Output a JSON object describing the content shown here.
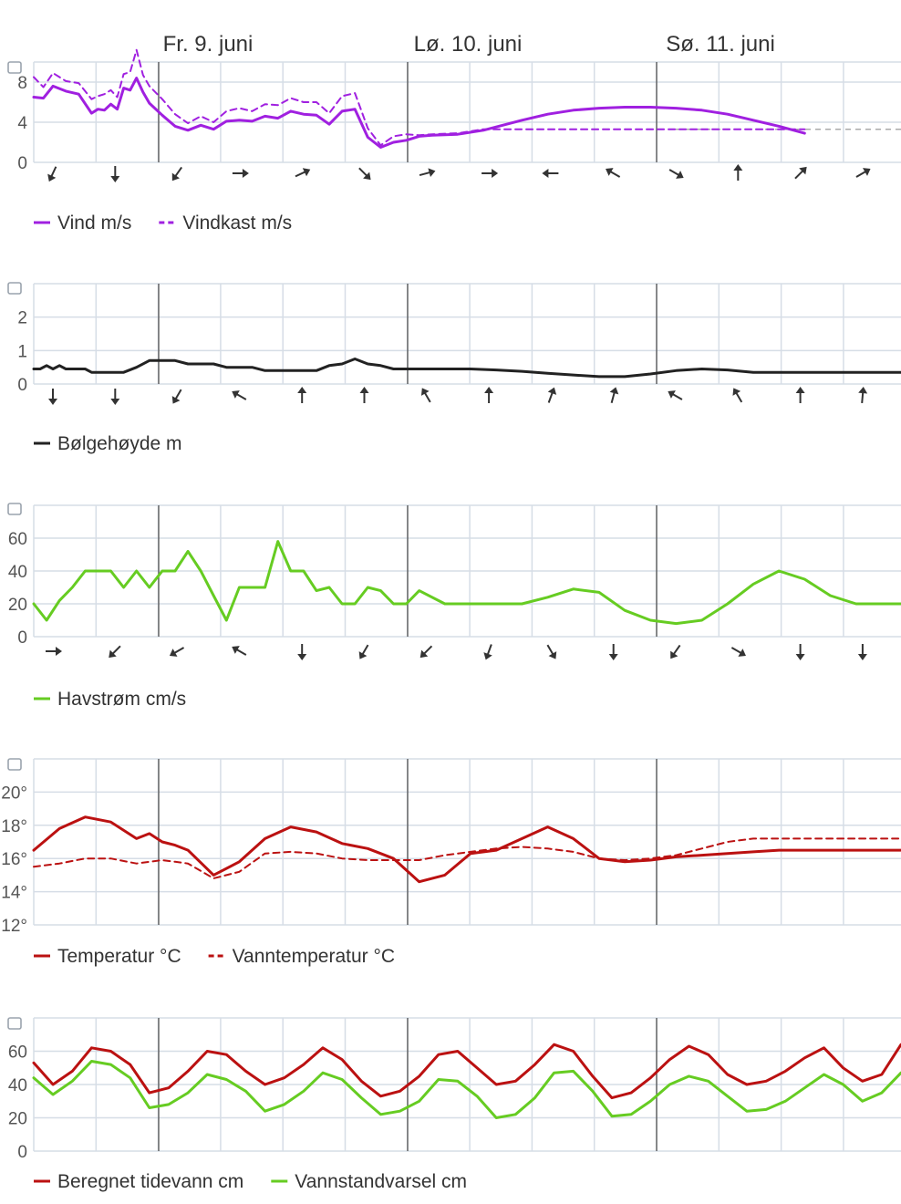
{
  "days": [
    "Fr. 9. juni",
    "Lø. 10. juni",
    "Sø. 11. juni"
  ],
  "colors": {
    "wind": "#a020e0",
    "wave": "#222222",
    "current": "#66cc22",
    "temp": "#bb1111",
    "tide": "#bb1111",
    "level": "#66cc22",
    "grid": "#d6dde6",
    "daysep": "#444444",
    "ref": "#aaaaaa"
  },
  "chart_data": [
    {
      "type": "line",
      "icon": "wind-icon",
      "ylim": [
        0,
        10
      ],
      "yticks": [
        "0",
        "4",
        "8"
      ],
      "yticks_values": [
        0,
        4,
        8
      ],
      "x": [
        0,
        1.5,
        3,
        5,
        7,
        9,
        10,
        11,
        12,
        13,
        14,
        15,
        16,
        17,
        18,
        20,
        22,
        24,
        26,
        28,
        30,
        32,
        34,
        36,
        38,
        40,
        42,
        44,
        46,
        48,
        50,
        52,
        54,
        56,
        58,
        60,
        62,
        66,
        70,
        76,
        80,
        84,
        88,
        92,
        96,
        100,
        104,
        108,
        112,
        116,
        120,
        124,
        128,
        132,
        135
      ],
      "series": [
        {
          "name": "Vind m/s",
          "style": "solid",
          "values": [
            6.5,
            6.4,
            7.6,
            7.1,
            6.8,
            4.9,
            5.3,
            5.2,
            5.8,
            5.3,
            7.4,
            7.2,
            8.4,
            7.0,
            5.9,
            4.7,
            3.6,
            3.2,
            3.7,
            3.3,
            4.1,
            4.2,
            4.1,
            4.6,
            4.4,
            5.1,
            4.8,
            4.7,
            3.8,
            5.1,
            5.3,
            2.5,
            1.5,
            2.0,
            2.2,
            2.6,
            2.7,
            2.8,
            3.2,
            4.2,
            4.8,
            5.2,
            5.4,
            5.5,
            5.5,
            5.4,
            5.2,
            4.8,
            4.2,
            3.6,
            2.9,
            null,
            null,
            null,
            null
          ]
        },
        {
          "name": "Vindkast m/s",
          "style": "dashed",
          "values": [
            8.5,
            7.5,
            8.9,
            8.1,
            7.9,
            6.3,
            6.6,
            6.8,
            7.2,
            6.5,
            8.8,
            9.0,
            11.2,
            8.7,
            7.6,
            6.3,
            4.8,
            3.9,
            4.6,
            4.0,
            5.1,
            5.4,
            5.1,
            5.8,
            5.7,
            6.4,
            6.0,
            6.0,
            4.9,
            6.6,
            6.9,
            3.4,
            1.7,
            2.6,
            2.8,
            2.7,
            2.8,
            2.9,
            3.3,
            3.3,
            3.3,
            3.3,
            3.3,
            3.3,
            3.3,
            3.3,
            3.3,
            3.3,
            3.3,
            3.3,
            3.3,
            null,
            null,
            null,
            null
          ]
        }
      ],
      "arrows": [
        205,
        180,
        215,
        90,
        65,
        135,
        75,
        90,
        270,
        300,
        120,
        0,
        45,
        60
      ],
      "legend": [
        {
          "label": "Vind m/s",
          "style": "solid",
          "color": "#a020e0"
        },
        {
          "label": "Vindkast m/s",
          "style": "dashed",
          "color": "#a020e0"
        }
      ]
    },
    {
      "type": "line",
      "icon": "wave-icon",
      "ylim": [
        0,
        3
      ],
      "yticks": [
        "0",
        "1",
        "2"
      ],
      "yticks_values": [
        0,
        1,
        2
      ],
      "x": [
        0,
        1,
        2,
        3,
        4,
        5,
        6,
        7,
        8,
        9,
        10,
        12,
        14,
        16,
        18,
        20,
        22,
        24,
        26,
        28,
        30,
        32,
        34,
        36,
        38,
        40,
        42,
        44,
        46,
        48,
        50,
        52,
        54,
        56,
        58,
        60,
        64,
        68,
        72,
        76,
        80,
        84,
        88,
        92,
        96,
        100,
        104,
        108,
        112,
        116,
        120,
        124,
        128,
        132,
        135
      ],
      "series": [
        {
          "name": "Bølgehøyde m",
          "values": [
            0.45,
            0.45,
            0.55,
            0.45,
            0.55,
            0.45,
            0.45,
            0.45,
            0.45,
            0.35,
            0.35,
            0.35,
            0.35,
            0.5,
            0.7,
            0.7,
            0.7,
            0.6,
            0.6,
            0.6,
            0.5,
            0.5,
            0.5,
            0.4,
            0.4,
            0.4,
            0.4,
            0.4,
            0.55,
            0.6,
            0.75,
            0.6,
            0.55,
            0.45,
            0.45,
            0.45,
            0.45,
            0.45,
            0.42,
            0.38,
            0.32,
            0.27,
            0.22,
            0.22,
            0.3,
            0.4,
            0.45,
            0.42,
            0.35,
            0.35,
            0.35,
            0.35,
            0.35,
            0.35,
            0.35
          ]
        }
      ],
      "arrows": [
        180,
        180,
        210,
        300,
        0,
        0,
        330,
        0,
        20,
        15,
        300,
        330,
        0,
        5
      ],
      "legend": [
        {
          "label": "Bølgehøyde m",
          "style": "solid",
          "color": "#222222"
        }
      ]
    },
    {
      "type": "line",
      "icon": "current-icon",
      "ylim": [
        0,
        80
      ],
      "yticks": [
        "0",
        "20",
        "40",
        "60"
      ],
      "yticks_values": [
        0,
        20,
        40,
        60
      ],
      "x": [
        0,
        2,
        4,
        6,
        8,
        10,
        12,
        14,
        16,
        18,
        20,
        22,
        24,
        26,
        28,
        30,
        32,
        34,
        36,
        38,
        40,
        42,
        44,
        46,
        48,
        50,
        52,
        54,
        56,
        58,
        60,
        64,
        68,
        72,
        76,
        80,
        84,
        88,
        92,
        96,
        100,
        104,
        108,
        112,
        116,
        120,
        124,
        128,
        132,
        135
      ],
      "series": [
        {
          "name": "Havstrøm cm/s",
          "values": [
            20,
            10,
            22,
            30,
            40,
            40,
            40,
            30,
            40,
            30,
            40,
            40,
            52,
            40,
            25,
            10,
            30,
            30,
            30,
            58,
            40,
            40,
            28,
            30,
            20,
            20,
            30,
            28,
            20,
            20,
            28,
            20,
            20,
            20,
            20,
            24,
            29,
            27,
            16,
            10,
            8,
            10,
            20,
            32,
            40,
            35,
            25,
            20,
            20,
            20
          ]
        }
      ],
      "arrows": [
        90,
        225,
        240,
        300,
        180,
        210,
        225,
        200,
        150,
        180,
        215,
        120,
        180,
        180
      ],
      "legend": [
        {
          "label": "Havstrøm cm/s",
          "style": "solid",
          "color": "#66cc22"
        }
      ]
    },
    {
      "type": "line",
      "icon": "thermometer-icon",
      "ylim": [
        12,
        22
      ],
      "yticks": [
        "12°",
        "14°",
        "16°",
        "18°",
        "20°"
      ],
      "yticks_values": [
        12,
        14,
        16,
        18,
        20
      ],
      "x": [
        0,
        4,
        8,
        12,
        16,
        18,
        20,
        22,
        24,
        28,
        32,
        36,
        40,
        44,
        48,
        52,
        56,
        60,
        64,
        68,
        72,
        76,
        80,
        84,
        88,
        92,
        96,
        100,
        104,
        108,
        112,
        116,
        120,
        124,
        128,
        132,
        135
      ],
      "series": [
        {
          "name": "Temperatur °C",
          "style": "solid",
          "values": [
            16.5,
            17.8,
            18.5,
            18.2,
            17.2,
            17.5,
            17.0,
            16.8,
            16.5,
            15.0,
            15.8,
            17.2,
            17.9,
            17.6,
            16.9,
            16.6,
            16.0,
            14.6,
            15.0,
            16.3,
            16.5,
            17.2,
            17.9,
            17.2,
            16.0,
            15.8,
            15.9,
            16.1,
            16.2,
            16.3,
            16.4,
            16.5,
            16.5,
            16.5,
            16.5,
            16.5,
            16.5
          ]
        },
        {
          "name": "Vanntemperatur °C",
          "style": "dashed",
          "values": [
            15.5,
            15.7,
            16.0,
            16.0,
            15.7,
            15.8,
            15.9,
            15.8,
            15.7,
            14.8,
            15.2,
            16.3,
            16.4,
            16.3,
            16.0,
            15.9,
            15.9,
            15.9,
            16.2,
            16.4,
            16.6,
            16.7,
            16.6,
            16.4,
            16.0,
            15.9,
            16.0,
            16.2,
            16.6,
            17.0,
            17.2,
            17.2,
            17.2,
            17.2,
            17.2,
            17.2,
            17.2
          ]
        }
      ],
      "legend": [
        {
          "label": "Temperatur °C",
          "style": "solid",
          "color": "#bb1111"
        },
        {
          "label": "Vanntemperatur °C",
          "style": "dashed",
          "color": "#bb1111"
        }
      ]
    },
    {
      "type": "line",
      "icon": "tide-icon",
      "ylim": [
        0,
        80
      ],
      "yticks": [
        "0",
        "20",
        "40",
        "60"
      ],
      "yticks_values": [
        0,
        20,
        40,
        60
      ],
      "x": [
        0,
        3,
        6,
        9,
        12,
        15,
        18,
        21,
        24,
        27,
        30,
        33,
        36,
        39,
        42,
        45,
        48,
        51,
        54,
        57,
        60,
        63,
        66,
        69,
        72,
        75,
        78,
        81,
        84,
        87,
        90,
        93,
        96,
        99,
        102,
        105,
        108,
        111,
        114,
        117,
        120,
        123,
        126,
        129,
        132,
        135
      ],
      "series": [
        {
          "name": "Beregnet tidevann cm",
          "style": "solid",
          "values": [
            53,
            40,
            48,
            62,
            60,
            52,
            35,
            38,
            48,
            60,
            58,
            48,
            40,
            44,
            52,
            62,
            55,
            42,
            33,
            36,
            45,
            58,
            60,
            50,
            40,
            42,
            52,
            64,
            60,
            45,
            32,
            35,
            44,
            55,
            63,
            58,
            46,
            40,
            42,
            48,
            56,
            62,
            50,
            42,
            46,
            64
          ]
        },
        {
          "name": "Vannstandvarsel cm",
          "style": "solid",
          "values": [
            44,
            34,
            42,
            54,
            52,
            44,
            26,
            28,
            35,
            46,
            43,
            36,
            24,
            28,
            36,
            47,
            43,
            32,
            22,
            24,
            30,
            43,
            42,
            33,
            20,
            22,
            32,
            47,
            48,
            36,
            21,
            22,
            30,
            40,
            45,
            42,
            33,
            24,
            25,
            30,
            38,
            46,
            40,
            30,
            35,
            47
          ]
        }
      ],
      "legend": [
        {
          "label": "Beregnet tidevann cm",
          "style": "solid",
          "color": "#bb1111"
        },
        {
          "label": "Vannstandvarsel cm",
          "style": "solid",
          "color": "#66cc22"
        }
      ]
    }
  ]
}
